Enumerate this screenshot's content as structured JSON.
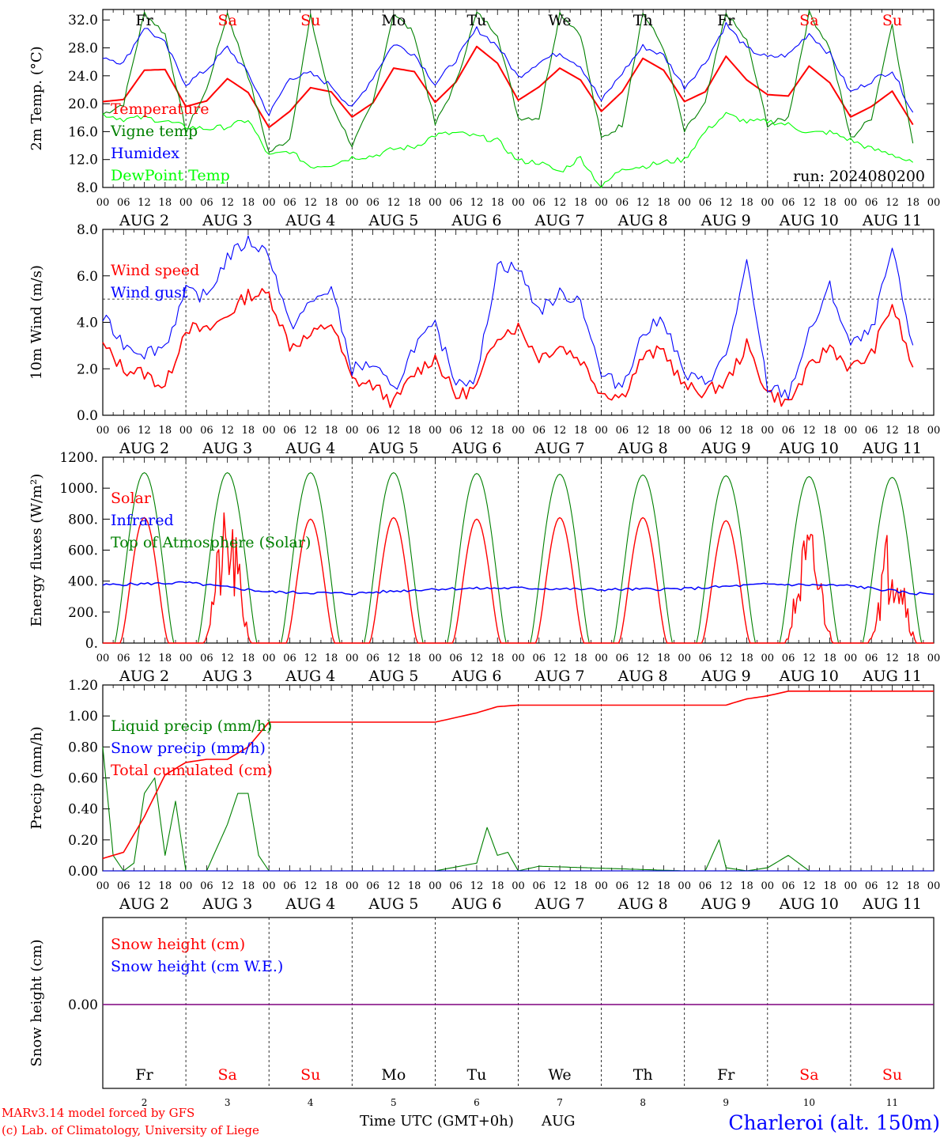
{
  "footer": {
    "credit_line1": "MARv3.14 model forced by GFS",
    "credit_line2": "(c) Lab. of Climatology, University of Liege",
    "xaxis_title": "Time UTC (GMT+0h)",
    "month": "AUG",
    "station": "Charleroi (alt. 150m)"
  },
  "days": [
    {
      "num": "2",
      "label": "AUG  2",
      "dow": "Fr",
      "weekend": false
    },
    {
      "num": "3",
      "label": "AUG  3",
      "dow": "Sa",
      "weekend": true
    },
    {
      "num": "4",
      "label": "AUG  4",
      "dow": "Su",
      "weekend": true
    },
    {
      "num": "5",
      "label": "AUG  5",
      "dow": "Mo",
      "weekend": false
    },
    {
      "num": "6",
      "label": "AUG  6",
      "dow": "Tu",
      "weekend": false
    },
    {
      "num": "7",
      "label": "AUG  7",
      "dow": "We",
      "weekend": false
    },
    {
      "num": "8",
      "label": "AUG  8",
      "dow": "Th",
      "weekend": false
    },
    {
      "num": "9",
      "label": "AUG  9",
      "dow": "Fr",
      "weekend": false
    },
    {
      "num": "10",
      "label": "AUG 10",
      "dow": "Sa",
      "weekend": true
    },
    {
      "num": "11",
      "label": "AUG 11",
      "dow": "Su",
      "weekend": true
    }
  ],
  "hour_ticks": [
    "00",
    "06",
    "12",
    "18"
  ],
  "colors": {
    "red": "#ff0000",
    "green": "#008000",
    "blue": "#0000ff",
    "lime": "#00ff00",
    "black": "#000000",
    "purple": "#7f007f"
  },
  "chart_data": [
    {
      "type": "line",
      "ylabel": "2m Temp. (°C)",
      "ylim": [
        8.0,
        33.5
      ],
      "yticks": [
        "8.0",
        "12.0",
        "16.0",
        "20.0",
        "24.0",
        "28.0",
        "32.0"
      ],
      "annotation": "run: 2024080200",
      "legend_placement": "left",
      "x_hours": [
        0,
        6,
        12,
        18,
        24,
        30,
        36,
        42,
        48,
        54,
        60,
        66,
        72,
        78,
        84,
        90,
        96,
        102,
        108,
        114,
        120,
        126,
        132,
        138,
        144,
        150,
        156,
        162,
        168,
        174,
        180,
        186,
        192,
        198,
        204,
        210,
        216,
        222,
        228,
        234
      ],
      "series": [
        {
          "name": "Temperature",
          "color": "#ff0000",
          "values": [
            20.3,
            20.6,
            24.8,
            24.9,
            19.6,
            20.4,
            23.6,
            21.6,
            16.6,
            18.9,
            22.3,
            21.7,
            18.1,
            20.1,
            25.1,
            24.6,
            20.2,
            23.1,
            28.2,
            25.8,
            20.5,
            22.4,
            25.1,
            23.4,
            18.9,
            21.7,
            26.5,
            24.8,
            20.3,
            21.7,
            26.8,
            23.4,
            21.3,
            21.1,
            25.4,
            23.0,
            18.1,
            19.6,
            21.8,
            17.0
          ]
        },
        {
          "name": "Vigne temp",
          "color": "#008000",
          "values": [
            18.5,
            20.0,
            33.0,
            30.0,
            16.0,
            22.0,
            33.0,
            24.0,
            13.0,
            15.0,
            32.5,
            20.0,
            14.0,
            20.0,
            33.0,
            30.0,
            17.0,
            23.0,
            33.0,
            30.0,
            18.0,
            18.0,
            33.0,
            30.0,
            15.0,
            17.0,
            33.0,
            28.0,
            16.0,
            20.0,
            33.0,
            29.0,
            17.0,
            18.0,
            33.0,
            28.0,
            15.0,
            18.0,
            31.5,
            14.0
          ]
        },
        {
          "name": "Humidex",
          "color": "#0000ff",
          "values": [
            26.8,
            25.8,
            31.0,
            28.6,
            22.8,
            24.9,
            28.1,
            24.3,
            18.4,
            23.7,
            24.3,
            22.6,
            19.3,
            23.8,
            28.6,
            27.1,
            22.8,
            26.3,
            30.7,
            28.3,
            23.8,
            26.0,
            27.3,
            25.4,
            20.4,
            24.4,
            28.2,
            26.9,
            22.4,
            25.9,
            31.4,
            27.9,
            26.6,
            27.0,
            30.1,
            27.1,
            21.6,
            23.3,
            24.8,
            18.7
          ]
        },
        {
          "name": "DewPoint Temp",
          "color": "#00ff00",
          "values": [
            18.5,
            17.8,
            18.0,
            17.5,
            16.7,
            16.4,
            16.7,
            17.7,
            12.5,
            13.2,
            11.0,
            11.3,
            12.3,
            12.5,
            13.5,
            13.8,
            15.5,
            15.8,
            15.3,
            14.7,
            11.8,
            11.6,
            10.2,
            12.3,
            8.0,
            10.8,
            11.0,
            11.6,
            12.0,
            16.0,
            18.5,
            17.4,
            17.5,
            17.0,
            15.8,
            15.9,
            14.8,
            13.5,
            12.8,
            11.4
          ]
        }
      ]
    },
    {
      "type": "line",
      "ylabel": "10m Wind (m/s)",
      "ylim": [
        0.0,
        8.0
      ],
      "yticks": [
        "0.0",
        "2.0",
        "4.0",
        "6.0",
        "8.0"
      ],
      "reference_line": 5.0,
      "legend_placement": "left",
      "x_hours": [
        0,
        6,
        12,
        18,
        24,
        30,
        36,
        42,
        48,
        54,
        60,
        66,
        72,
        78,
        84,
        90,
        96,
        102,
        108,
        114,
        120,
        126,
        132,
        138,
        144,
        150,
        156,
        162,
        168,
        174,
        180,
        186,
        192,
        198,
        204,
        210,
        216,
        222,
        228,
        234
      ],
      "series": [
        {
          "name": "Wind speed",
          "color": "#ff0000",
          "values": [
            3.0,
            2.0,
            1.8,
            1.2,
            3.8,
            3.6,
            4.3,
            5.2,
            5.2,
            3.0,
            3.4,
            4.0,
            1.5,
            1.3,
            0.5,
            1.8,
            2.5,
            0.8,
            1.2,
            3.5,
            3.8,
            2.5,
            3.0,
            2.4,
            1.0,
            0.8,
            2.5,
            2.8,
            1.2,
            1.0,
            1.4,
            3.0,
            1.0,
            0.5,
            2.0,
            3.0,
            2.0,
            2.6,
            4.8,
            2.0
          ]
        },
        {
          "name": "Wind gust",
          "color": "#0000ff",
          "values": [
            4.2,
            3.1,
            2.7,
            3.0,
            5.3,
            5.1,
            6.8,
            7.5,
            7.0,
            3.8,
            4.8,
            5.5,
            2.0,
            2.2,
            1.0,
            3.0,
            3.8,
            1.5,
            1.6,
            6.5,
            6.3,
            4.5,
            5.2,
            5.0,
            1.7,
            1.3,
            3.5,
            4.2,
            1.7,
            1.4,
            2.5,
            6.5,
            1.2,
            0.9,
            3.5,
            5.5,
            3.0,
            3.6,
            7.1,
            2.8
          ]
        }
      ]
    },
    {
      "type": "line",
      "ylabel": "Energy fluxes (W/m²)",
      "ylim": [
        0,
        1200
      ],
      "yticks": [
        "0.",
        "200.",
        "400.",
        "600.",
        "800.",
        "1000.",
        "1200."
      ],
      "legend_placement": "left",
      "daily_peaks": {
        "solar": [
          810,
          760,
          800,
          810,
          800,
          810,
          810,
          790,
          670,
          700
        ],
        "top_of_atmosphere": [
          1100,
          1100,
          1100,
          1100,
          1095,
          1090,
          1085,
          1080,
          1075,
          1070
        ]
      },
      "series": [
        {
          "name": "Solar",
          "color": "#ff0000"
        },
        {
          "name": "Infrared",
          "color": "#0000ff",
          "x_hours": [
            0,
            24,
            48,
            72,
            96,
            120,
            144,
            168,
            192,
            216,
            234
          ],
          "values": [
            375,
            390,
            330,
            320,
            350,
            355,
            345,
            350,
            380,
            370,
            320
          ]
        },
        {
          "name": "Top of Atmosphere (Solar)",
          "color": "#008000"
        }
      ]
    },
    {
      "type": "line",
      "ylabel": "Precip (mm/h)",
      "ylim": [
        0.0,
        1.2
      ],
      "yticks": [
        "0.00",
        "0.20",
        "0.40",
        "0.60",
        "0.80",
        "1.00",
        "1.20"
      ],
      "legend_placement": "left",
      "series": [
        {
          "name": "Liquid precip (mm/h)",
          "color": "#008000",
          "x_hours": [
            0,
            3,
            6,
            9,
            12,
            15,
            18,
            21,
            24,
            30,
            36,
            39,
            42,
            45,
            48,
            96,
            108,
            111,
            114,
            117,
            120,
            126,
            168,
            174,
            178,
            180,
            186,
            192,
            198,
            204
          ],
          "values": [
            0.8,
            0.1,
            0.0,
            0.05,
            0.5,
            0.6,
            0.1,
            0.45,
            0.0,
            0.0,
            0.3,
            0.5,
            0.5,
            0.1,
            0.0,
            0.0,
            0.05,
            0.28,
            0.1,
            0.12,
            0.0,
            0.03,
            0.0,
            0.0,
            0.2,
            0.02,
            0.0,
            0.02,
            0.1,
            0.0
          ]
        },
        {
          "name": "Snow precip (mm/h)",
          "color": "#0000ff",
          "x_hours": [
            0,
            240
          ],
          "values": [
            0.0,
            0.0
          ]
        },
        {
          "name": "Total cumulated (cm)",
          "color": "#ff0000",
          "x_hours": [
            0,
            6,
            12,
            18,
            24,
            30,
            36,
            42,
            48,
            96,
            108,
            114,
            120,
            126,
            180,
            186,
            192,
            198,
            240
          ],
          "values": [
            0.08,
            0.12,
            0.35,
            0.62,
            0.7,
            0.72,
            0.72,
            0.8,
            0.96,
            0.96,
            1.02,
            1.06,
            1.07,
            1.07,
            1.07,
            1.11,
            1.13,
            1.16,
            1.16
          ]
        }
      ]
    },
    {
      "type": "line",
      "ylabel": "Snow height (cm)",
      "yticks": [
        "0.00"
      ],
      "legend_placement": "left",
      "series": [
        {
          "name": "Snow height (cm)",
          "color": "#ff0000",
          "x_hours": [
            0,
            240
          ],
          "values": [
            0.0,
            0.0
          ]
        },
        {
          "name": "Snow height (cm W.E.)",
          "color": "#0000ff",
          "x_hours": [
            0,
            240
          ],
          "values": [
            0.0,
            0.0
          ]
        }
      ]
    }
  ]
}
